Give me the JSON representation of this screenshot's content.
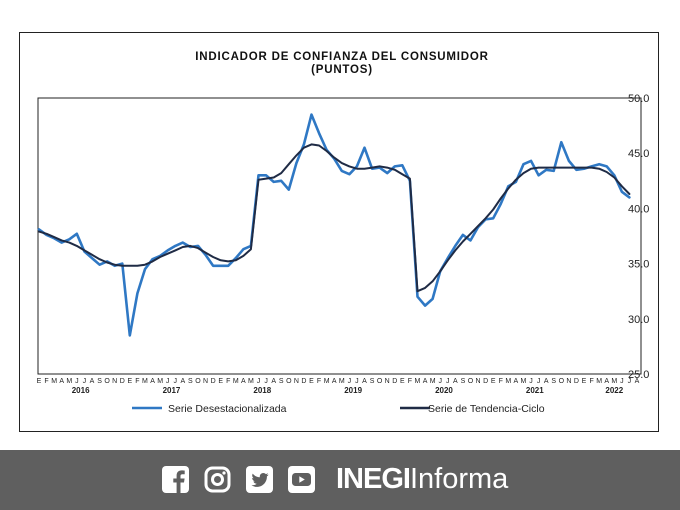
{
  "chart_data": {
    "type": "line",
    "title": "INDICADOR DE CONFIANZA DEL CONSUMIDOR",
    "subtitle": "(PUNTOS)",
    "y_axis": {
      "ylim": [
        25,
        50
      ],
      "ticks": [
        "50.0",
        "45.0",
        "40.0",
        "35.0",
        "30.0",
        "25.0"
      ],
      "position": "right"
    },
    "month_labels": [
      "E",
      "F",
      "M",
      "A",
      "M",
      "J",
      "J",
      "A",
      "S",
      "O",
      "N",
      "D",
      "E",
      "F",
      "M",
      "A",
      "M",
      "J",
      "J",
      "A",
      "S",
      "O",
      "N",
      "D",
      "E",
      "F",
      "M",
      "A",
      "M",
      "J",
      "J",
      "A",
      "S",
      "O",
      "N",
      "D",
      "E",
      "F",
      "M",
      "A",
      "M",
      "J",
      "J",
      "A",
      "S",
      "O",
      "N",
      "D",
      "E",
      "F",
      "M",
      "A",
      "M",
      "J",
      "J",
      "A",
      "S",
      "O",
      "N",
      "D",
      "E",
      "F",
      "M",
      "A",
      "M",
      "J",
      "J",
      "A",
      "S",
      "O",
      "N",
      "D",
      "E",
      "F",
      "M",
      "A",
      "M",
      "J",
      "J",
      "A"
    ],
    "year_labels": [
      {
        "label": "2016",
        "month_index": 5.5
      },
      {
        "label": "2017",
        "month_index": 17.5
      },
      {
        "label": "2018",
        "month_index": 29.5
      },
      {
        "label": "2019",
        "month_index": 41.5
      },
      {
        "label": "2020",
        "month_index": 53.5
      },
      {
        "label": "2021",
        "month_index": 65.5
      },
      {
        "label": "2022",
        "month_index": 76.0
      }
    ],
    "series": [
      {
        "name": "Serie Desestacionalizada",
        "color": "#2f78c4",
        "values": [
          38.1,
          37.6,
          37.3,
          36.9,
          37.2,
          37.7,
          36.1,
          35.5,
          34.9,
          35.2,
          34.8,
          35.0,
          28.5,
          32.3,
          34.5,
          35.4,
          35.7,
          36.2,
          36.6,
          36.9,
          36.5,
          36.6,
          35.8,
          34.8,
          34.8,
          34.8,
          35.5,
          36.3,
          36.6,
          43.0,
          43.0,
          42.4,
          42.5,
          41.7,
          44.1,
          45.8,
          48.5,
          46.8,
          45.3,
          44.5,
          43.4,
          43.1,
          43.8,
          45.5,
          43.6,
          43.7,
          43.2,
          43.8,
          43.9,
          42.5,
          32.0,
          31.2,
          31.8,
          34.3,
          35.5,
          36.6,
          37.6,
          37.1,
          38.3,
          39.0,
          39.1,
          40.4,
          42.0,
          42.4,
          44.0,
          44.3,
          43.0,
          43.5,
          43.4,
          46.0,
          44.3,
          43.5,
          43.6,
          43.8,
          44.0,
          43.8,
          43.0,
          41.5,
          41.0
        ]
      },
      {
        "name": "Serie de Tendencia-Ciclo",
        "color": "#1f2b45",
        "values": [
          37.9,
          37.7,
          37.4,
          37.1,
          36.9,
          36.6,
          36.2,
          35.8,
          35.4,
          35.1,
          34.9,
          34.8,
          34.8,
          34.8,
          34.9,
          35.2,
          35.6,
          35.9,
          36.2,
          36.5,
          36.6,
          36.4,
          36.0,
          35.6,
          35.3,
          35.2,
          35.3,
          35.7,
          36.3,
          42.6,
          42.7,
          42.8,
          43.2,
          44.0,
          44.8,
          45.5,
          45.8,
          45.7,
          45.2,
          44.6,
          44.1,
          43.8,
          43.6,
          43.6,
          43.7,
          43.8,
          43.7,
          43.5,
          43.1,
          42.7,
          32.5,
          32.8,
          33.4,
          34.3,
          35.3,
          36.2,
          37.0,
          37.7,
          38.4,
          39.1,
          39.9,
          40.9,
          41.8,
          42.6,
          43.2,
          43.6,
          43.7,
          43.7,
          43.7,
          43.7,
          43.7,
          43.7,
          43.7,
          43.7,
          43.6,
          43.3,
          42.8,
          42.0,
          41.3
        ]
      }
    ],
    "legend": {
      "placement": "bottom"
    },
    "grid": false
  },
  "footer": {
    "background": "#5f5f5f",
    "icons": [
      "facebook-icon",
      "instagram-icon",
      "twitter-icon",
      "youtube-icon"
    ],
    "brand_bold": "INEGI",
    "brand_light": "Informa"
  }
}
